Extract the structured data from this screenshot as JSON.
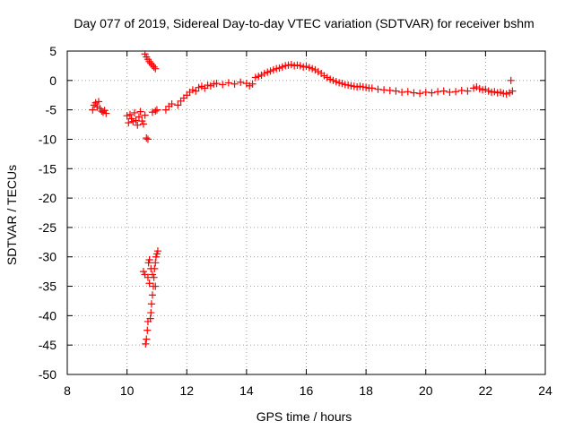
{
  "chart_data": {
    "type": "scatter",
    "title": "Day 077 of 2019, Sidereal Day-to-day VTEC variation (SDTVAR) for receiver bshm",
    "xlabel": "GPS time / hours",
    "ylabel": "SDTVAR / TECUs",
    "xlim": [
      8,
      24
    ],
    "ylim": [
      -50,
      5
    ],
    "xticks": [
      8,
      10,
      12,
      14,
      16,
      18,
      20,
      22,
      24
    ],
    "yticks": [
      5,
      0,
      -5,
      -10,
      -15,
      -20,
      -25,
      -30,
      -35,
      -40,
      -45,
      -50
    ],
    "xtick_labels": [
      "8",
      "10",
      "12",
      "14",
      "16",
      "18",
      "20",
      "22",
      "24"
    ],
    "ytick_labels": [
      "5",
      "0",
      "-5",
      "-10",
      "-15",
      "-20",
      "-25",
      "-30",
      "-35",
      "-40",
      "-45",
      "-50"
    ],
    "grid": true,
    "legend": "none",
    "marker": "+",
    "color": "#ff0000",
    "series": [
      {
        "name": "SDTVAR",
        "points": [
          [
            8.85,
            -5.0
          ],
          [
            8.9,
            -4.2
          ],
          [
            8.95,
            -3.8
          ],
          [
            9.0,
            -4.5
          ],
          [
            9.05,
            -3.6
          ],
          [
            9.1,
            -4.8
          ],
          [
            9.15,
            -5.2
          ],
          [
            9.2,
            -5.4
          ],
          [
            9.25,
            -5.1
          ],
          [
            9.3,
            -5.6
          ],
          [
            10.0,
            -6.0
          ],
          [
            10.05,
            -7.2
          ],
          [
            10.1,
            -5.8
          ],
          [
            10.15,
            -6.5
          ],
          [
            10.2,
            -7.0
          ],
          [
            10.25,
            -5.5
          ],
          [
            10.3,
            -6.8
          ],
          [
            10.35,
            -7.6
          ],
          [
            10.4,
            -6.2
          ],
          [
            10.45,
            -5.3
          ],
          [
            10.5,
            -6.9
          ],
          [
            10.55,
            -7.4
          ],
          [
            10.6,
            -5.9
          ],
          [
            10.65,
            -9.8
          ],
          [
            10.7,
            -10.0
          ],
          [
            10.6,
            4.5
          ],
          [
            10.65,
            4.0
          ],
          [
            10.7,
            3.6
          ],
          [
            10.75,
            3.2
          ],
          [
            10.8,
            2.9
          ],
          [
            10.85,
            2.6
          ],
          [
            10.9,
            2.3
          ],
          [
            10.95,
            2.0
          ],
          [
            10.85,
            -5.4
          ],
          [
            10.95,
            -5.2
          ],
          [
            11.0,
            -5.0
          ],
          [
            10.55,
            -32.5
          ],
          [
            10.6,
            -33.0
          ],
          [
            10.62,
            -44.8
          ],
          [
            10.65,
            -44.0
          ],
          [
            10.68,
            -42.5
          ],
          [
            10.7,
            -41.0
          ],
          [
            10.72,
            -31.0
          ],
          [
            10.75,
            -30.5
          ],
          [
            10.78,
            -40.5
          ],
          [
            10.8,
            -39.5
          ],
          [
            10.82,
            -38.0
          ],
          [
            10.85,
            -36.5
          ],
          [
            10.88,
            -35.0
          ],
          [
            10.9,
            -33.5
          ],
          [
            10.92,
            -32.0
          ],
          [
            10.95,
            -31.0
          ],
          [
            10.97,
            -30.0
          ],
          [
            11.0,
            -29.5
          ],
          [
            11.03,
            -29.0
          ],
          [
            10.75,
            -34.5
          ],
          [
            10.85,
            -33.0
          ],
          [
            10.95,
            -35.0
          ],
          [
            10.8,
            -32.0
          ],
          [
            10.7,
            -33.5
          ],
          [
            11.3,
            -5.0
          ],
          [
            11.4,
            -4.4
          ],
          [
            11.5,
            -4.0
          ],
          [
            11.7,
            -4.2
          ],
          [
            11.8,
            -3.5
          ],
          [
            11.9,
            -3.0
          ],
          [
            12.0,
            -2.5
          ],
          [
            12.1,
            -2.0
          ],
          [
            12.2,
            -1.6
          ],
          [
            12.3,
            -1.8
          ],
          [
            12.4,
            -1.2
          ],
          [
            12.5,
            -1.0
          ],
          [
            12.6,
            -1.3
          ],
          [
            12.7,
            -0.8
          ],
          [
            12.8,
            -0.9
          ],
          [
            12.9,
            -0.6
          ],
          [
            13.0,
            -0.5
          ],
          [
            13.2,
            -0.7
          ],
          [
            13.4,
            -0.4
          ],
          [
            13.6,
            -0.6
          ],
          [
            13.8,
            -0.3
          ],
          [
            14.0,
            -0.5
          ],
          [
            14.1,
            -0.9
          ],
          [
            14.2,
            -0.6
          ],
          [
            14.3,
            0.5
          ],
          [
            14.4,
            0.7
          ],
          [
            14.5,
            0.9
          ],
          [
            14.6,
            1.2
          ],
          [
            14.7,
            1.4
          ],
          [
            14.8,
            1.6
          ],
          [
            14.9,
            1.8
          ],
          [
            15.0,
            2.0
          ],
          [
            15.1,
            2.1
          ],
          [
            15.2,
            2.3
          ],
          [
            15.3,
            2.5
          ],
          [
            15.4,
            2.6
          ],
          [
            15.5,
            2.7
          ],
          [
            15.6,
            2.5
          ],
          [
            15.7,
            2.6
          ],
          [
            15.8,
            2.5
          ],
          [
            15.9,
            2.3
          ],
          [
            16.0,
            2.4
          ],
          [
            16.1,
            2.2
          ],
          [
            16.2,
            2.0
          ],
          [
            16.3,
            1.8
          ],
          [
            16.4,
            1.5
          ],
          [
            16.5,
            1.2
          ],
          [
            16.6,
            0.8
          ],
          [
            16.7,
            0.5
          ],
          [
            16.8,
            0.2
          ],
          [
            16.9,
            0.0
          ],
          [
            17.0,
            -0.2
          ],
          [
            17.1,
            -0.4
          ],
          [
            17.2,
            -0.5
          ],
          [
            17.3,
            -0.7
          ],
          [
            17.4,
            -0.8
          ],
          [
            17.5,
            -0.9
          ],
          [
            17.6,
            -1.0
          ],
          [
            17.7,
            -1.1
          ],
          [
            17.8,
            -1.0
          ],
          [
            17.9,
            -1.1
          ],
          [
            18.0,
            -1.2
          ],
          [
            18.1,
            -1.3
          ],
          [
            18.2,
            -1.3
          ],
          [
            18.4,
            -1.5
          ],
          [
            18.6,
            -1.6
          ],
          [
            18.8,
            -1.7
          ],
          [
            19.0,
            -1.8
          ],
          [
            19.2,
            -2.0
          ],
          [
            19.4,
            -1.9
          ],
          [
            19.6,
            -2.1
          ],
          [
            19.8,
            -2.2
          ],
          [
            20.0,
            -2.0
          ],
          [
            20.2,
            -2.1
          ],
          [
            20.4,
            -1.9
          ],
          [
            20.6,
            -1.8
          ],
          [
            20.8,
            -2.0
          ],
          [
            21.0,
            -1.9
          ],
          [
            21.2,
            -1.7
          ],
          [
            21.4,
            -1.8
          ],
          [
            21.6,
            -1.3
          ],
          [
            21.7,
            -1.1
          ],
          [
            21.8,
            -1.4
          ],
          [
            21.9,
            -1.6
          ],
          [
            22.0,
            -1.5
          ],
          [
            22.1,
            -1.8
          ],
          [
            22.2,
            -2.0
          ],
          [
            22.3,
            -1.9
          ],
          [
            22.4,
            -2.1
          ],
          [
            22.5,
            -2.0
          ],
          [
            22.6,
            -2.2
          ],
          [
            22.7,
            -2.3
          ],
          [
            22.8,
            -2.1
          ],
          [
            22.85,
            0.0
          ],
          [
            22.9,
            -1.8
          ]
        ]
      }
    ]
  }
}
